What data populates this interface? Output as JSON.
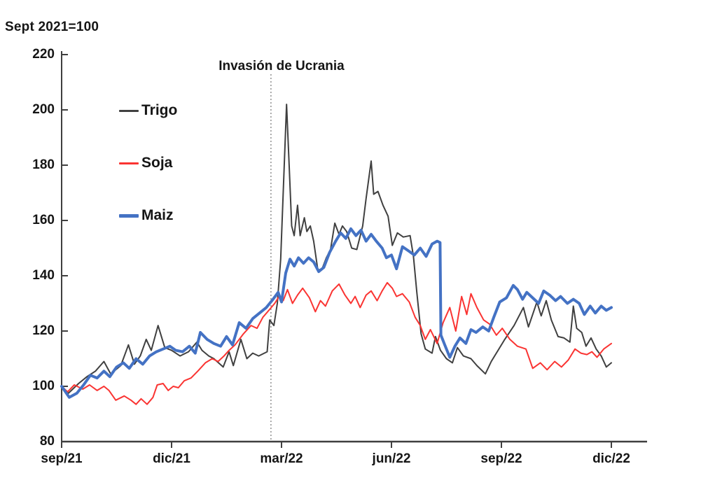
{
  "title": "Sept 2021=100",
  "annotation_text": "Invasión de Ucrania",
  "colors": {
    "trigo": "#404040",
    "soja": "#fa3432",
    "maiz": "#4472c4",
    "axis": "#3f3f3f",
    "event_line": "#8f8f8f",
    "text": "#151515",
    "background": "#ffffff"
  },
  "chart_data": {
    "type": "line",
    "title": "Sept 2021=100",
    "annotation": "Invasión de Ucrania",
    "x_unit": "weeks_since_sep_2021",
    "x_ticks": {
      "labels": [
        "sep/21",
        "dic/21",
        "mar/22",
        "jun/22",
        "sep/22",
        "dic/22"
      ],
      "weeks": [
        0,
        13,
        26,
        39,
        52,
        65
      ]
    },
    "ylim": [
      80,
      220
    ],
    "y_ticks": [
      80,
      100,
      120,
      140,
      160,
      180,
      200,
      220
    ],
    "grid": "off",
    "legend_position": "upper-left-inside",
    "event_line": {
      "label": "Invasión de Ucrania",
      "week": 24.75
    },
    "series": [
      {
        "name": "Trigo",
        "color": "#404040",
        "width": 2,
        "points": [
          [
            0,
            100
          ],
          [
            0.8,
            97.5
          ],
          [
            2,
            101
          ],
          [
            3,
            103.5
          ],
          [
            4,
            105.5
          ],
          [
            5,
            109
          ],
          [
            5.8,
            104.5
          ],
          [
            7,
            107.5
          ],
          [
            7.9,
            115
          ],
          [
            8.6,
            108
          ],
          [
            9.3,
            111
          ],
          [
            10,
            117
          ],
          [
            10.6,
            113
          ],
          [
            11.4,
            122
          ],
          [
            12.2,
            114
          ],
          [
            13,
            113
          ],
          [
            14,
            111
          ],
          [
            15,
            112.5
          ],
          [
            16,
            116
          ],
          [
            16.6,
            113
          ],
          [
            17.4,
            111
          ],
          [
            18,
            110
          ],
          [
            19.1,
            107
          ],
          [
            19.8,
            112.5
          ],
          [
            20.3,
            107.5
          ],
          [
            21.2,
            117
          ],
          [
            21.9,
            110
          ],
          [
            22.6,
            112
          ],
          [
            23.3,
            111
          ],
          [
            24.3,
            112.5
          ],
          [
            24.6,
            124
          ],
          [
            25.1,
            122
          ],
          [
            25.5,
            130
          ],
          [
            25.9,
            146
          ],
          [
            26.3,
            178
          ],
          [
            26.6,
            202
          ],
          [
            26.9,
            180
          ],
          [
            27.2,
            158
          ],
          [
            27.5,
            154.5
          ],
          [
            27.9,
            165.5
          ],
          [
            28.2,
            154.5
          ],
          [
            28.7,
            161
          ],
          [
            29,
            156
          ],
          [
            29.4,
            158
          ],
          [
            29.8,
            152.5
          ],
          [
            30.3,
            142
          ],
          [
            30.8,
            142.5
          ],
          [
            31.3,
            146.5
          ],
          [
            31.8,
            149.5
          ],
          [
            32.3,
            159
          ],
          [
            32.8,
            155
          ],
          [
            33.2,
            158
          ],
          [
            33.7,
            156
          ],
          [
            34.3,
            150
          ],
          [
            34.9,
            149.5
          ],
          [
            35.6,
            158
          ],
          [
            36,
            168
          ],
          [
            36.6,
            181.5
          ],
          [
            36.9,
            169.5
          ],
          [
            37.4,
            170.5
          ],
          [
            38,
            165.5
          ],
          [
            38.6,
            161.5
          ],
          [
            39.1,
            151
          ],
          [
            39.7,
            155.5
          ],
          [
            40.4,
            154
          ],
          [
            41.2,
            154.5
          ],
          [
            41.6,
            147
          ],
          [
            42,
            134
          ],
          [
            42.5,
            119
          ],
          [
            43,
            113.5
          ],
          [
            43.8,
            112
          ],
          [
            44.2,
            118
          ],
          [
            44.8,
            113
          ],
          [
            45.5,
            110
          ],
          [
            46.2,
            108.5
          ],
          [
            46.8,
            114
          ],
          [
            47.5,
            111
          ],
          [
            48.4,
            110
          ],
          [
            49.1,
            107.5
          ],
          [
            50.1,
            104.5
          ],
          [
            50.8,
            109
          ],
          [
            51.6,
            113
          ],
          [
            52.4,
            117
          ],
          [
            53.5,
            122
          ],
          [
            54.6,
            128.5
          ],
          [
            55.2,
            121.5
          ],
          [
            56.2,
            130.5
          ],
          [
            56.7,
            125.5
          ],
          [
            57.3,
            131
          ],
          [
            57.9,
            124
          ],
          [
            58.7,
            118
          ],
          [
            59.4,
            117.5
          ],
          [
            60.1,
            116
          ],
          [
            60.5,
            129
          ],
          [
            60.9,
            121
          ],
          [
            61.5,
            119.5
          ],
          [
            62,
            114.5
          ],
          [
            62.6,
            117.5
          ],
          [
            63.2,
            113.5
          ],
          [
            63.8,
            111
          ],
          [
            64.4,
            107
          ],
          [
            65,
            108.5
          ]
        ]
      },
      {
        "name": "Soja",
        "color": "#fa3432",
        "width": 2,
        "points": [
          [
            0,
            100
          ],
          [
            0.7,
            98
          ],
          [
            1.5,
            100.5
          ],
          [
            2.5,
            99
          ],
          [
            3.3,
            100.5
          ],
          [
            4.2,
            98.5
          ],
          [
            5,
            100
          ],
          [
            5.6,
            98.5
          ],
          [
            6.4,
            95
          ],
          [
            7.4,
            96.5
          ],
          [
            8.2,
            95
          ],
          [
            8.8,
            93.5
          ],
          [
            9.4,
            95.5
          ],
          [
            10.1,
            93.5
          ],
          [
            10.8,
            96
          ],
          [
            11.3,
            100.5
          ],
          [
            12,
            101
          ],
          [
            12.6,
            98.5
          ],
          [
            13.2,
            100
          ],
          [
            13.8,
            99.5
          ],
          [
            14.5,
            102
          ],
          [
            15.3,
            103
          ],
          [
            16.1,
            105.5
          ],
          [
            17,
            108.5
          ],
          [
            17.8,
            110
          ],
          [
            18.5,
            109
          ],
          [
            19.2,
            111
          ],
          [
            19.8,
            113
          ],
          [
            20.5,
            115
          ],
          [
            21.5,
            119
          ],
          [
            22.4,
            122
          ],
          [
            23.1,
            121
          ],
          [
            23.8,
            125
          ],
          [
            24.5,
            127.5
          ],
          [
            25.2,
            130
          ],
          [
            25.7,
            132.5
          ],
          [
            26.2,
            131
          ],
          [
            26.7,
            135
          ],
          [
            27.3,
            130
          ],
          [
            27.9,
            133
          ],
          [
            28.5,
            135.5
          ],
          [
            29.3,
            132
          ],
          [
            30,
            127
          ],
          [
            30.6,
            131
          ],
          [
            31.2,
            129
          ],
          [
            32,
            134.5
          ],
          [
            32.8,
            137
          ],
          [
            33.5,
            133
          ],
          [
            34.2,
            130
          ],
          [
            34.7,
            132.5
          ],
          [
            35.3,
            128.5
          ],
          [
            36,
            133
          ],
          [
            36.6,
            134.5
          ],
          [
            37.3,
            131
          ],
          [
            37.9,
            134.5
          ],
          [
            38.5,
            137.5
          ],
          [
            39.1,
            135.5
          ],
          [
            39.6,
            132.5
          ],
          [
            40.3,
            133.5
          ],
          [
            41.1,
            130.5
          ],
          [
            41.8,
            125
          ],
          [
            42.4,
            122
          ],
          [
            43,
            117
          ],
          [
            43.6,
            120.5
          ],
          [
            44.4,
            115.5
          ],
          [
            45.1,
            123
          ],
          [
            45.9,
            128.5
          ],
          [
            46.6,
            120
          ],
          [
            47.3,
            132.5
          ],
          [
            47.9,
            126
          ],
          [
            48.4,
            133.5
          ],
          [
            49.1,
            128.5
          ],
          [
            49.9,
            124
          ],
          [
            50.6,
            122.5
          ],
          [
            51.4,
            118.5
          ],
          [
            52.1,
            121
          ],
          [
            53,
            117
          ],
          [
            53.9,
            114.5
          ],
          [
            54.9,
            113.5
          ],
          [
            55.7,
            106.5
          ],
          [
            56.6,
            108.5
          ],
          [
            57.4,
            106
          ],
          [
            58.3,
            109
          ],
          [
            59.1,
            107
          ],
          [
            59.9,
            109.5
          ],
          [
            60.7,
            113.5
          ],
          [
            61.4,
            112
          ],
          [
            62.1,
            111.5
          ],
          [
            62.7,
            112.5
          ],
          [
            63.3,
            110.5
          ],
          [
            64.1,
            113.5
          ],
          [
            65,
            115.5
          ]
        ]
      },
      {
        "name": "Maiz",
        "color": "#4472c4",
        "width": 4,
        "points": [
          [
            0,
            100
          ],
          [
            0.9,
            96
          ],
          [
            1.8,
            97.5
          ],
          [
            2.6,
            100.5
          ],
          [
            3.4,
            104
          ],
          [
            4.2,
            103
          ],
          [
            5,
            105.5
          ],
          [
            5.7,
            103.5
          ],
          [
            6.5,
            107
          ],
          [
            7.3,
            108.5
          ],
          [
            8,
            106.5
          ],
          [
            8.8,
            110
          ],
          [
            9.6,
            108
          ],
          [
            10.4,
            111
          ],
          [
            11.2,
            112.5
          ],
          [
            12,
            113.5
          ],
          [
            12.8,
            114.5
          ],
          [
            13.5,
            113
          ],
          [
            14.3,
            112.5
          ],
          [
            15.1,
            114.5
          ],
          [
            15.8,
            112
          ],
          [
            16.4,
            119.5
          ],
          [
            17.2,
            117
          ],
          [
            18,
            115.5
          ],
          [
            18.8,
            114.5
          ],
          [
            19.5,
            118
          ],
          [
            20.2,
            115
          ],
          [
            21,
            123
          ],
          [
            21.8,
            121
          ],
          [
            22.6,
            124.5
          ],
          [
            23.4,
            126.5
          ],
          [
            24.2,
            128.5
          ],
          [
            25,
            131.5
          ],
          [
            25.6,
            134
          ],
          [
            26,
            130.5
          ],
          [
            26.5,
            141
          ],
          [
            27,
            146
          ],
          [
            27.5,
            143.5
          ],
          [
            28,
            146.5
          ],
          [
            28.6,
            144.5
          ],
          [
            29.2,
            146.5
          ],
          [
            29.8,
            145
          ],
          [
            30.4,
            141.5
          ],
          [
            31,
            143
          ],
          [
            31.7,
            148.5
          ],
          [
            32.4,
            152.5
          ],
          [
            33,
            155.5
          ],
          [
            33.6,
            153.5
          ],
          [
            34.2,
            157
          ],
          [
            34.8,
            154.5
          ],
          [
            35.4,
            156.5
          ],
          [
            36,
            152.5
          ],
          [
            36.6,
            155
          ],
          [
            37.2,
            152.5
          ],
          [
            37.9,
            150
          ],
          [
            38.4,
            146.5
          ],
          [
            39,
            147.5
          ],
          [
            39.6,
            142.5
          ],
          [
            40.3,
            150.5
          ],
          [
            41,
            149
          ],
          [
            41.7,
            147.5
          ],
          [
            42.4,
            150
          ],
          [
            43.1,
            147
          ],
          [
            43.8,
            151.5
          ],
          [
            44.4,
            152.5
          ],
          [
            44.75,
            152
          ],
          [
            44.85,
            118.5
          ],
          [
            45.3,
            115
          ],
          [
            45.9,
            110.5
          ],
          [
            46.5,
            114.5
          ],
          [
            47.1,
            117.5
          ],
          [
            47.8,
            115.5
          ],
          [
            48.4,
            120.5
          ],
          [
            49,
            119.5
          ],
          [
            49.8,
            121.5
          ],
          [
            50.5,
            120
          ],
          [
            51.1,
            125
          ],
          [
            51.8,
            130.5
          ],
          [
            52.6,
            132
          ],
          [
            53.4,
            136.5
          ],
          [
            53.9,
            135
          ],
          [
            54.5,
            131.5
          ],
          [
            55,
            134
          ],
          [
            55.7,
            132
          ],
          [
            56.4,
            130
          ],
          [
            57,
            134.5
          ],
          [
            57.7,
            133
          ],
          [
            58.4,
            131
          ],
          [
            59,
            132.5
          ],
          [
            59.8,
            130
          ],
          [
            60.5,
            131.5
          ],
          [
            61.2,
            130
          ],
          [
            61.8,
            126
          ],
          [
            62.5,
            129
          ],
          [
            63.1,
            126.5
          ],
          [
            63.8,
            129
          ],
          [
            64.4,
            127.5
          ],
          [
            65,
            128.5
          ]
        ]
      }
    ]
  }
}
